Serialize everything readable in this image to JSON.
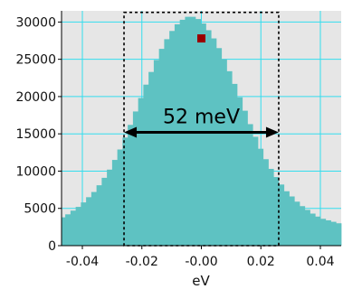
{
  "chart_data": {
    "type": "bar",
    "xlabel": "eV",
    "ylabel": "",
    "xlim": [
      -0.047,
      0.047
    ],
    "ylim": [
      0,
      31500
    ],
    "xticks": [
      -0.04,
      -0.02,
      0.0,
      0.02,
      0.04
    ],
    "xtick_labels": [
      "-0.04",
      "-0.02",
      "-0.00",
      "0.02",
      "0.04"
    ],
    "yticks": [
      0,
      5000,
      10000,
      15000,
      20000,
      25000,
      30000
    ],
    "ytick_labels": [
      "0",
      "5000",
      "10000",
      "15000",
      "20000",
      "25000",
      "30000"
    ],
    "grid": true,
    "bin_width": 0.00175,
    "bin_start": -0.0475,
    "values": [
      3800,
      4200,
      4700,
      5200,
      5800,
      6500,
      7200,
      8100,
      9100,
      10200,
      11500,
      12900,
      14500,
      16200,
      18000,
      19800,
      21600,
      23300,
      24900,
      26400,
      27700,
      28800,
      29700,
      30300,
      30700,
      30700,
      30400,
      29800,
      28900,
      27800,
      26500,
      25000,
      23400,
      21700,
      19900,
      18100,
      16300,
      14600,
      13000,
      11600,
      10300,
      9200,
      8200,
      7300,
      6600,
      5900,
      5300,
      4800,
      4300,
      3900,
      3600,
      3400,
      3200,
      3000
    ],
    "marker": {
      "x": 0.0,
      "y": 27800
    },
    "fwhm_box": {
      "x0": -0.026,
      "x1": 0.026,
      "y0": 0,
      "y1": 31300
    },
    "fwhm_arrow": {
      "x0": -0.026,
      "x1": 0.026,
      "y": 15200
    },
    "annotation": "52 meV",
    "colors": {
      "bar": "#5ec2c2",
      "plot_bg": "#e6e6e6",
      "grid": "#33ddee",
      "marker": "#990000"
    }
  }
}
